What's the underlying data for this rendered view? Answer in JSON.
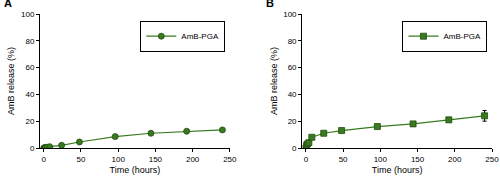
{
  "chart_data": [
    {
      "type": "line",
      "title": "A",
      "x": [
        0,
        1,
        2,
        4,
        8,
        24,
        48,
        96,
        144,
        192,
        240
      ],
      "series": [
        {
          "name": "AmB-PGA",
          "color": "#3a7a1f",
          "marker": "circle",
          "values": [
            0,
            0.2,
            0.4,
            0.6,
            1,
            2,
            4.5,
            8.5,
            11,
            12.5,
            13.5
          ]
        }
      ],
      "x_label": "Time (hours)",
      "y_label": "AmB release (%)",
      "xlim": [
        -5,
        250
      ],
      "xticks": [
        0,
        50,
        100,
        150,
        200,
        250
      ],
      "ylim": [
        0,
        100
      ],
      "yticks": [
        0,
        20,
        40,
        60,
        80,
        100
      ],
      "grid": false,
      "legend": "upper right"
    },
    {
      "type": "line",
      "title": "B",
      "x": [
        0,
        1,
        2,
        4,
        8,
        24,
        48,
        96,
        144,
        192,
        240
      ],
      "series": [
        {
          "name": "AmB-PGA",
          "color": "#3a7a1f",
          "marker": "square",
          "values": [
            0,
            2,
            3,
            4,
            8,
            11,
            13,
            16,
            18,
            21,
            24
          ],
          "errors": [
            0,
            0.3,
            0.3,
            0.5,
            0.8,
            1,
            1,
            1.2,
            1.2,
            1.5,
            4
          ]
        }
      ],
      "x_label": "Time (hours)",
      "y_label": "AmB release (%)",
      "xlim": [
        -5,
        250
      ],
      "xticks": [
        0,
        50,
        100,
        150,
        200,
        250
      ],
      "ylim": [
        0,
        100
      ],
      "yticks": [
        0,
        20,
        40,
        60,
        80,
        100
      ],
      "grid": false,
      "legend": "upper right"
    }
  ]
}
